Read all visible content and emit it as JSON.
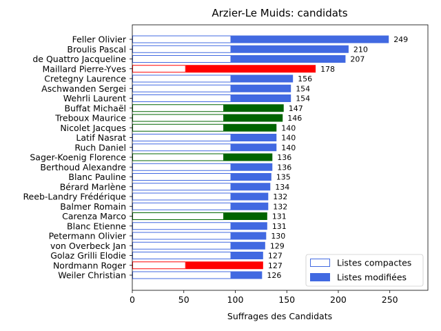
{
  "chart_data": {
    "type": "bar",
    "orientation": "horizontal",
    "stacked": true,
    "title": "Arzier-Le Muids: candidats",
    "xlabel": "Suffrages des Candidats",
    "ylabel": "",
    "xlim": [
      0,
      287
    ],
    "xticks": [
      0,
      50,
      100,
      150,
      200,
      250
    ],
    "grid": false,
    "legend_position": "bottom-right",
    "legend": [
      {
        "label": "Listes compactes",
        "style": "outline"
      },
      {
        "label": "Listes modifiées",
        "style": "filled"
      }
    ],
    "categories": [
      "Feller Olivier",
      "Broulis Pascal",
      "de Quattro Jacqueline",
      "Maillard Pierre-Yves",
      "Cretegny Laurence",
      "Aschwanden Sergei",
      "Wehrli Laurent",
      "Buffat Michaël",
      "Treboux Maurice",
      "Nicolet Jacques",
      "Latif Nasrat",
      "Ruch Daniel",
      "Sager-Koenig Florence",
      "Berthoud Alexandre",
      "Blanc Pauline",
      "Bérard Marlène",
      "Reeb-Landry Frédérique",
      "Balmer Romain",
      "Carenza Marco",
      "Blanc Etienne",
      "Petermann Olivier",
      "von Overbeck Jan",
      "Golaz Grilli Elodie",
      "Nordmann Roger",
      "Weiler Christian"
    ],
    "compact_values": [
      96,
      96,
      96,
      52,
      96,
      96,
      96,
      89,
      89,
      89,
      96,
      96,
      89,
      96,
      96,
      96,
      96,
      96,
      89,
      96,
      96,
      96,
      96,
      52,
      96
    ],
    "modified_values": [
      153,
      114,
      111,
      126,
      60,
      58,
      58,
      58,
      57,
      51,
      44,
      44,
      47,
      40,
      39,
      38,
      36,
      36,
      42,
      35,
      34,
      33,
      31,
      75,
      30
    ],
    "totals": [
      249,
      210,
      207,
      178,
      156,
      154,
      154,
      147,
      146,
      140,
      140,
      140,
      136,
      136,
      135,
      134,
      132,
      132,
      131,
      131,
      130,
      129,
      127,
      127,
      126
    ],
    "bar_colors": [
      "#4169e1",
      "#4169e1",
      "#4169e1",
      "#ff0000",
      "#4169e1",
      "#4169e1",
      "#4169e1",
      "#006400",
      "#006400",
      "#006400",
      "#4169e1",
      "#4169e1",
      "#006400",
      "#4169e1",
      "#4169e1",
      "#4169e1",
      "#4169e1",
      "#4169e1",
      "#006400",
      "#4169e1",
      "#4169e1",
      "#4169e1",
      "#4169e1",
      "#ff0000",
      "#4169e1"
    ],
    "legend_color": "#4169e1"
  }
}
